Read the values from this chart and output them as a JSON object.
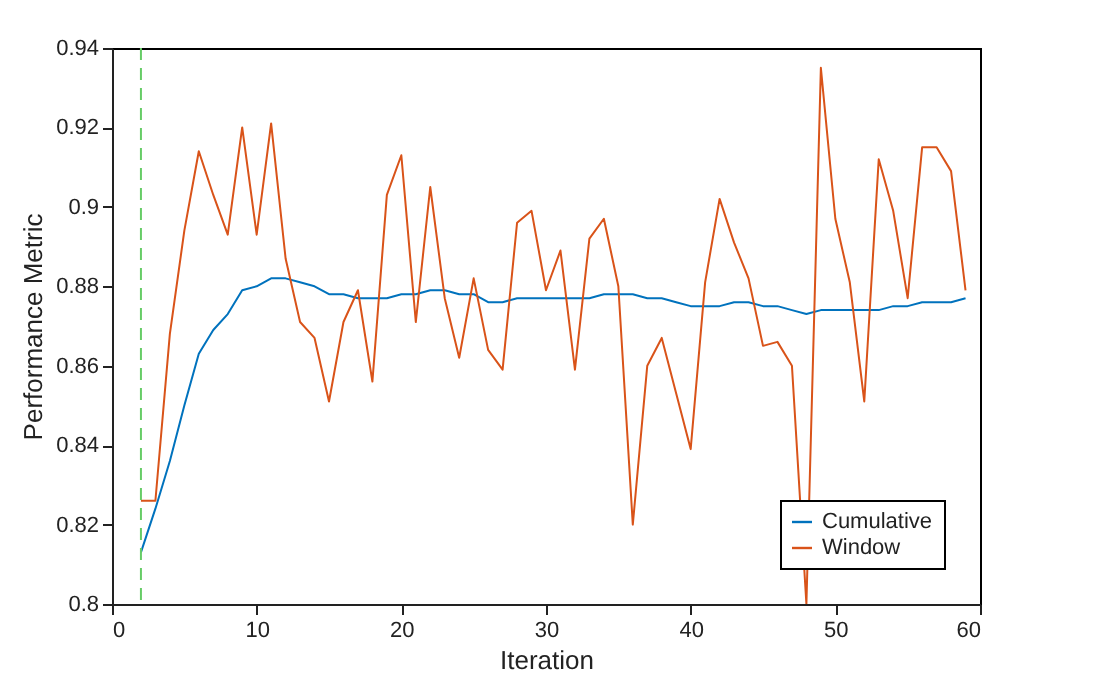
{
  "chart_data": {
    "type": "line",
    "xlabel": "Iteration",
    "ylabel": "Performance Metric",
    "xlim": [
      0,
      60
    ],
    "xticks": [
      0,
      10,
      20,
      30,
      40,
      50,
      60
    ],
    "ylim": [
      0.8,
      0.94
    ],
    "yticks": [
      0.8,
      0.82,
      0.84,
      0.86,
      0.88,
      0.9,
      0.92,
      0.94
    ],
    "grid": false,
    "legend": "bottom right",
    "line_style": "solid",
    "marker": "none",
    "x": [
      2,
      3,
      4,
      5,
      6,
      7,
      8,
      9,
      10,
      11,
      12,
      13,
      14,
      15,
      16,
      17,
      18,
      19,
      20,
      21,
      22,
      23,
      24,
      25,
      26,
      27,
      28,
      29,
      30,
      31,
      32,
      33,
      34,
      35,
      36,
      37,
      38,
      39,
      40,
      41,
      42,
      43,
      44,
      45,
      46,
      47,
      48,
      49,
      50,
      51,
      52,
      53,
      54,
      55,
      56,
      57,
      58,
      59
    ],
    "series": [
      {
        "name": "Cumulative",
        "color": "#0072bd",
        "values": [
          0.813,
          0.824,
          0.836,
          0.85,
          0.863,
          0.869,
          0.873,
          0.879,
          0.88,
          0.882,
          0.882,
          0.881,
          0.88,
          0.878,
          0.878,
          0.877,
          0.877,
          0.877,
          0.878,
          0.878,
          0.879,
          0.879,
          0.878,
          0.878,
          0.876,
          0.876,
          0.877,
          0.877,
          0.877,
          0.877,
          0.877,
          0.877,
          0.878,
          0.878,
          0.878,
          0.877,
          0.877,
          0.876,
          0.875,
          0.875,
          0.875,
          0.876,
          0.876,
          0.875,
          0.875,
          0.874,
          0.873,
          0.874,
          0.874,
          0.874,
          0.874,
          0.874,
          0.875,
          0.875,
          0.876,
          0.876,
          0.876,
          0.877
        ]
      },
      {
        "name": "Window",
        "color": "#d95319",
        "values": [
          0.826,
          0.826,
          0.868,
          0.894,
          0.914,
          0.903,
          0.893,
          0.92,
          0.893,
          0.921,
          0.887,
          0.871,
          0.867,
          0.851,
          0.871,
          0.879,
          0.856,
          0.903,
          0.913,
          0.871,
          0.905,
          0.877,
          0.862,
          0.882,
          0.864,
          0.859,
          0.896,
          0.899,
          0.879,
          0.889,
          0.859,
          0.892,
          0.897,
          0.88,
          0.82,
          0.86,
          0.867,
          0.853,
          0.839,
          0.881,
          0.902,
          0.891,
          0.882,
          0.865,
          0.866,
          0.86,
          0.8,
          0.935,
          0.897,
          0.881,
          0.851,
          0.912,
          0.899,
          0.877,
          0.915,
          0.915,
          0.909,
          0.879
        ]
      }
    ],
    "ref_lines": [
      {
        "axis": "x",
        "value": 2,
        "color": "#66cc66",
        "line_style": "dashed"
      }
    ]
  }
}
